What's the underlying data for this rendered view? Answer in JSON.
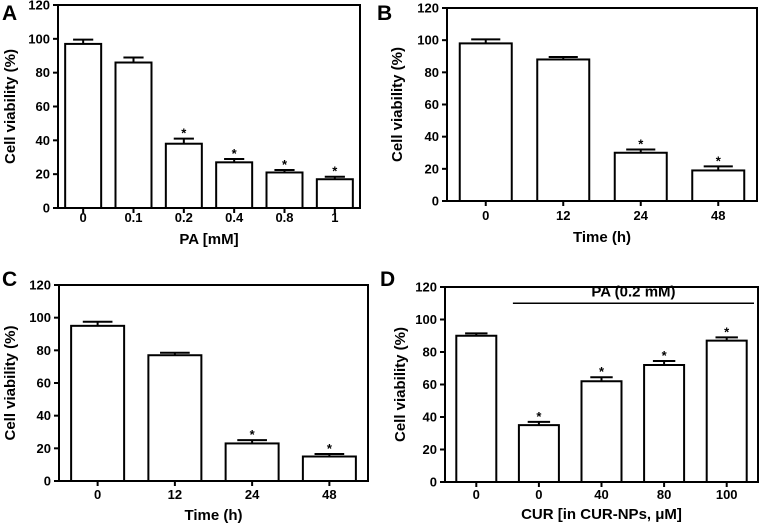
{
  "chart_data": [
    {
      "id": "A",
      "type": "bar",
      "panel_label": "A",
      "categories": [
        "0",
        "0.1",
        "0.2",
        "0.4",
        "0.8",
        "1"
      ],
      "values": [
        97,
        86,
        38,
        27,
        21,
        17
      ],
      "errors": [
        2.5,
        3,
        3,
        2,
        1.5,
        1.5
      ],
      "significant": [
        false,
        false,
        true,
        true,
        true,
        true
      ],
      "significance_marker": "*",
      "xlabel": "PA [mM]",
      "ylabel": "Cell viability (%)",
      "ylim": [
        0,
        120
      ],
      "yticks": [
        "0",
        "20",
        "40",
        "60",
        "80",
        "100",
        "120"
      ]
    },
    {
      "id": "B",
      "type": "bar",
      "panel_label": "B",
      "categories": [
        "0",
        "12",
        "24",
        "48"
      ],
      "values": [
        98,
        88,
        30,
        19
      ],
      "errors": [
        2.5,
        1.5,
        2,
        2.5
      ],
      "significant": [
        false,
        false,
        true,
        true
      ],
      "significance_marker": "*",
      "xlabel": "Time (h)",
      "ylabel": "Cell viability (%)",
      "ylim": [
        0,
        120
      ],
      "yticks": [
        "0",
        "20",
        "40",
        "60",
        "80",
        "100",
        "120"
      ]
    },
    {
      "id": "C",
      "type": "bar",
      "panel_label": "C",
      "categories": [
        "0",
        "12",
        "24",
        "48"
      ],
      "values": [
        95,
        77,
        23,
        15
      ],
      "errors": [
        2.5,
        1.5,
        2,
        1.5
      ],
      "significant": [
        false,
        false,
        true,
        true
      ],
      "significance_marker": "*",
      "xlabel": "Time (h)",
      "ylabel": "Cell viability (%)",
      "ylim": [
        0,
        120
      ],
      "yticks": [
        "0",
        "20",
        "40",
        "60",
        "80",
        "100",
        "120"
      ]
    },
    {
      "id": "D",
      "type": "bar",
      "panel_label": "D",
      "categories": [
        "0",
        "0",
        "40",
        "80",
        "100"
      ],
      "values": [
        90,
        35,
        62,
        72,
        87
      ],
      "errors": [
        1.5,
        2,
        2.5,
        2.5,
        2
      ],
      "significant": [
        false,
        true,
        true,
        true,
        true
      ],
      "significance_marker": "*",
      "xlabel": "CUR [in CUR-NPs, μM]",
      "ylabel": "Cell viability (%)",
      "ylim": [
        0,
        120
      ],
      "yticks": [
        "0",
        "20",
        "40",
        "60",
        "80",
        "100",
        "120"
      ],
      "annotation": {
        "text": "PA (0.2 mM)",
        "from_index": 1,
        "to_index": 4
      }
    }
  ]
}
